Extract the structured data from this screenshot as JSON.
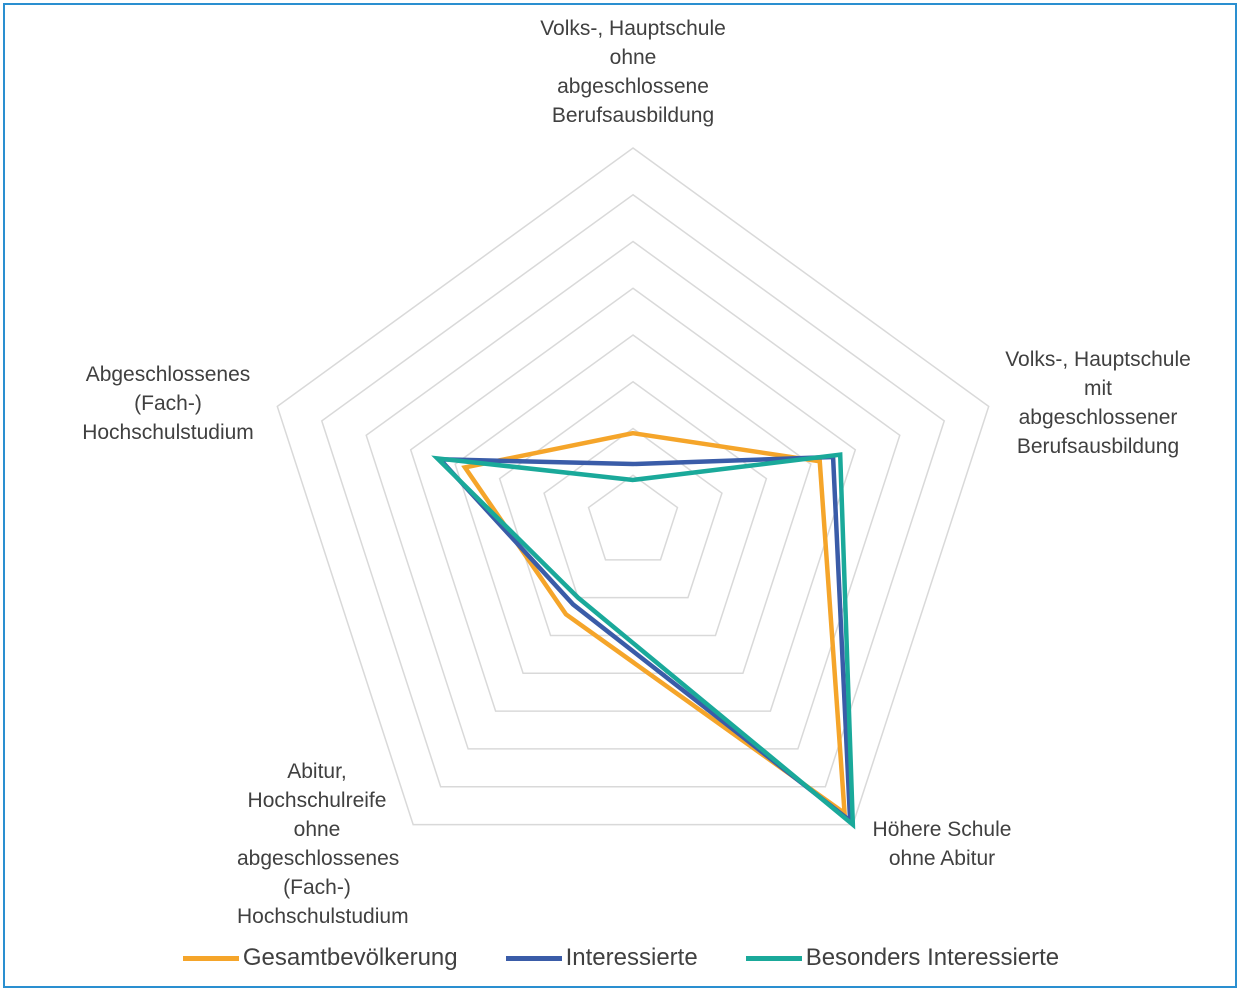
{
  "chart_data": {
    "type": "radar",
    "categories": [
      "Volks-, Hauptschule ohne abgeschlossene Berufsausbildung",
      "Volks-, Hauptschule mit abgeschlossener Berufsausbildung",
      "Höhere Schule ohne Abitur",
      "Abitur, Hochschulreife ohne abgeschlossenes (Fach-) Hochschulstudium",
      "Abgeschlossenes (Fach-) Hochschulstudium"
    ],
    "series": [
      {
        "name": "Gesamtbevölkerung",
        "color": "#f5a52a",
        "values": [
          9.5,
          21,
          38.5,
          12.2,
          18.9
        ]
      },
      {
        "name": "Interessierte",
        "color": "#3a5ca8",
        "values": [
          6.2,
          22.5,
          39.5,
          10.9,
          21.7
        ]
      },
      {
        "name": "Besonders Interessierte",
        "color": "#1aa99a",
        "values": [
          4.5,
          23.3,
          40,
          10,
          22
        ]
      }
    ],
    "ylim": [
      0,
      40
    ],
    "yticks": [
      0,
      5,
      10,
      15,
      20,
      25,
      30,
      35,
      40
    ],
    "grid": true,
    "legend": "bottom"
  }
}
